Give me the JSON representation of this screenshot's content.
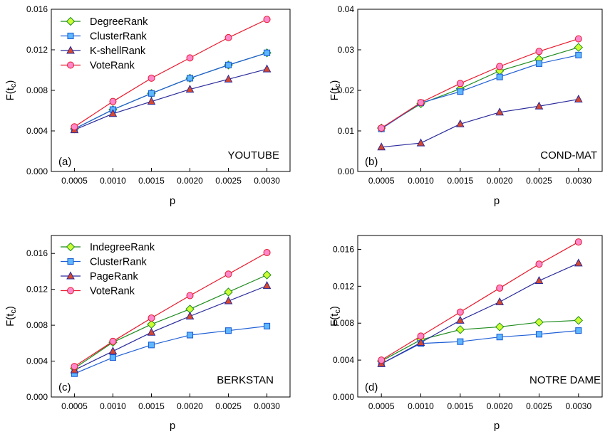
{
  "figure": {
    "ylabel_base": "F(t",
    "ylabel_sub": "c",
    "ylabel_close": ")"
  },
  "chart_data": [
    {
      "type": "line",
      "panel_tag": "(a)",
      "network": "YOUTUBE",
      "xlabel": "p",
      "x": [
        0.0005,
        0.001,
        0.0015,
        0.002,
        0.0025,
        0.003
      ],
      "x_tick_labels": [
        "0.0005",
        "0.0010",
        "0.0015",
        "0.0020",
        "0.0025",
        "0.0030"
      ],
      "xlim": [
        0.0002,
        0.0033
      ],
      "ylim": [
        0,
        0.016
      ],
      "y_ticks": [
        0,
        0.004,
        0.008,
        0.012,
        0.016
      ],
      "y_tick_labels": [
        "0.000",
        "0.004",
        "0.008",
        "0.012",
        "0.016"
      ],
      "legend_position": "top-left",
      "series": [
        {
          "name": "DegreeRank",
          "marker": "diamond",
          "line_color": "#1e8c1e",
          "fill_color": "#ccff33",
          "values": [
            0.0042,
            0.0061,
            0.0077,
            0.0092,
            0.0105,
            0.0117
          ]
        },
        {
          "name": "ClusterRank",
          "marker": "square",
          "line_color": "#1f5fd6",
          "fill_color": "#5fb8ff",
          "values": [
            0.0042,
            0.0061,
            0.0077,
            0.0092,
            0.0105,
            0.0117
          ]
        },
        {
          "name": "K-shellRank",
          "marker": "triangle",
          "line_color": "#2a2a9c",
          "fill_color": "#d9482b",
          "values": [
            0.0041,
            0.0057,
            0.0069,
            0.0081,
            0.0091,
            0.0101
          ]
        },
        {
          "name": "VoteRank",
          "marker": "circle",
          "line_color": "#e8192c",
          "fill_color": "#ff88cc",
          "values": [
            0.0044,
            0.0069,
            0.0092,
            0.0112,
            0.0132,
            0.015
          ]
        }
      ]
    },
    {
      "type": "line",
      "panel_tag": "(b)",
      "network": "COND-MAT",
      "xlabel": "p",
      "x": [
        0.0005,
        0.001,
        0.0015,
        0.002,
        0.0025,
        0.003
      ],
      "x_tick_labels": [
        "0.0005",
        "0.0010",
        "0.0015",
        "0.0020",
        "0.0025",
        "0.0030"
      ],
      "xlim": [
        0.0002,
        0.0033
      ],
      "ylim": [
        0,
        0.04
      ],
      "y_ticks": [
        0,
        0.01,
        0.02,
        0.03,
        0.04
      ],
      "y_tick_labels": [
        "0.00",
        "0.01",
        "0.02",
        "0.03",
        "0.04"
      ],
      "legend_position": "none",
      "series": [
        {
          "name": "DegreeRank",
          "marker": "diamond",
          "line_color": "#1e8c1e",
          "fill_color": "#ccff33",
          "values": [
            0.0107,
            0.0167,
            0.0204,
            0.0248,
            0.0277,
            0.0306
          ]
        },
        {
          "name": "ClusterRank",
          "marker": "square",
          "line_color": "#1f5fd6",
          "fill_color": "#5fb8ff",
          "values": [
            0.0105,
            0.0169,
            0.0197,
            0.0233,
            0.0266,
            0.0287
          ]
        },
        {
          "name": "K-shellRank",
          "marker": "triangle",
          "line_color": "#2a2a9c",
          "fill_color": "#d9482b",
          "values": [
            0.006,
            0.007,
            0.0117,
            0.0146,
            0.0161,
            0.0178
          ]
        },
        {
          "name": "VoteRank",
          "marker": "circle",
          "line_color": "#e8192c",
          "fill_color": "#ff88cc",
          "values": [
            0.0107,
            0.017,
            0.0217,
            0.0259,
            0.0296,
            0.0327
          ]
        }
      ]
    },
    {
      "type": "line",
      "panel_tag": "(c)",
      "network": "BERKSTAN",
      "xlabel": "p",
      "x": [
        0.0005,
        0.001,
        0.0015,
        0.002,
        0.0025,
        0.003
      ],
      "x_tick_labels": [
        "0.0005",
        "0.0010",
        "0.0015",
        "0.0020",
        "0.0025",
        "0.0030"
      ],
      "xlim": [
        0.0002,
        0.0033
      ],
      "ylim": [
        0,
        0.018
      ],
      "y_ticks": [
        0,
        0.004,
        0.008,
        0.012,
        0.016
      ],
      "y_tick_labels": [
        "0.000",
        "0.004",
        "0.008",
        "0.012",
        "0.016"
      ],
      "legend_position": "top-left",
      "series": [
        {
          "name": "IndegreeRank",
          "marker": "diamond",
          "line_color": "#1e8c1e",
          "fill_color": "#ccff33",
          "values": [
            0.0032,
            0.0061,
            0.0081,
            0.0098,
            0.0117,
            0.0136
          ]
        },
        {
          "name": "ClusterRank",
          "marker": "square",
          "line_color": "#1f5fd6",
          "fill_color": "#5fb8ff",
          "values": [
            0.0026,
            0.0044,
            0.0058,
            0.0069,
            0.0074,
            0.0079
          ]
        },
        {
          "name": "PageRank",
          "marker": "triangle",
          "line_color": "#2a2a9c",
          "fill_color": "#d9482b",
          "values": [
            0.003,
            0.0051,
            0.0072,
            0.009,
            0.0107,
            0.0124
          ]
        },
        {
          "name": "VoteRank",
          "marker": "circle",
          "line_color": "#e8192c",
          "fill_color": "#ff88cc",
          "values": [
            0.0034,
            0.0062,
            0.0088,
            0.0113,
            0.0137,
            0.0161
          ]
        }
      ]
    },
    {
      "type": "line",
      "panel_tag": "(d)",
      "network": "NOTRE DAME",
      "xlabel": "p",
      "x": [
        0.0005,
        0.001,
        0.0015,
        0.002,
        0.0025,
        0.003
      ],
      "x_tick_labels": [
        "0.0005",
        "0.0010",
        "0.0015",
        "0.0020",
        "0.0025",
        "0.0030"
      ],
      "xlim": [
        0.0002,
        0.0033
      ],
      "ylim": [
        0,
        0.0175
      ],
      "y_ticks": [
        0,
        0.004,
        0.008,
        0.012,
        0.016
      ],
      "y_tick_labels": [
        "0.000",
        "0.004",
        "0.008",
        "0.012",
        "0.016"
      ],
      "legend_position": "none",
      "series": [
        {
          "name": "IndegreeRank",
          "marker": "diamond",
          "line_color": "#1e8c1e",
          "fill_color": "#ccff33",
          "values": [
            0.0039,
            0.0062,
            0.0073,
            0.0076,
            0.0081,
            0.0083
          ]
        },
        {
          "name": "ClusterRank",
          "marker": "square",
          "line_color": "#1f5fd6",
          "fill_color": "#5fb8ff",
          "values": [
            0.0036,
            0.0058,
            0.006,
            0.0065,
            0.0068,
            0.0072
          ]
        },
        {
          "name": "PageRank",
          "marker": "triangle",
          "line_color": "#2a2a9c",
          "fill_color": "#d9482b",
          "values": [
            0.0036,
            0.0059,
            0.0083,
            0.0103,
            0.0126,
            0.0145
          ]
        },
        {
          "name": "VoteRank",
          "marker": "circle",
          "line_color": "#e8192c",
          "fill_color": "#ff88cc",
          "values": [
            0.004,
            0.0066,
            0.0092,
            0.0118,
            0.0144,
            0.0168
          ]
        }
      ]
    }
  ]
}
